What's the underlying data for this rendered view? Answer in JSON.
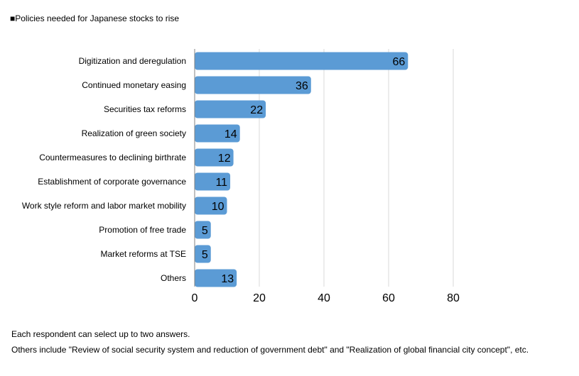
{
  "chart_data": {
    "type": "bar",
    "orientation": "horizontal",
    "title": "■Policies needed for Japanese stocks to rise",
    "categories": [
      "Digitization and deregulation",
      "Continued monetary easing",
      "Securities tax reforms",
      "Realization of green society",
      "Countermeasures to declining birthrate",
      "Establishment of corporate governance",
      "Work style reform and labor market mobility",
      "Promotion of free trade",
      "Market reforms at TSE",
      "Others"
    ],
    "values": [
      66,
      36,
      22,
      14,
      12,
      11,
      10,
      5,
      5,
      13
    ],
    "xlim": [
      0,
      80
    ],
    "x_ticks": [
      "0",
      "20",
      "40",
      "60",
      "80"
    ],
    "grid": "vertical",
    "legend": "none",
    "bar_color": "#5b9bd5",
    "notes": [
      "Each respondent can select up to two answers.",
      "Others include \"Review of social security system and reduction of government debt\" and \"Realization of global financial city concept\", etc."
    ]
  }
}
